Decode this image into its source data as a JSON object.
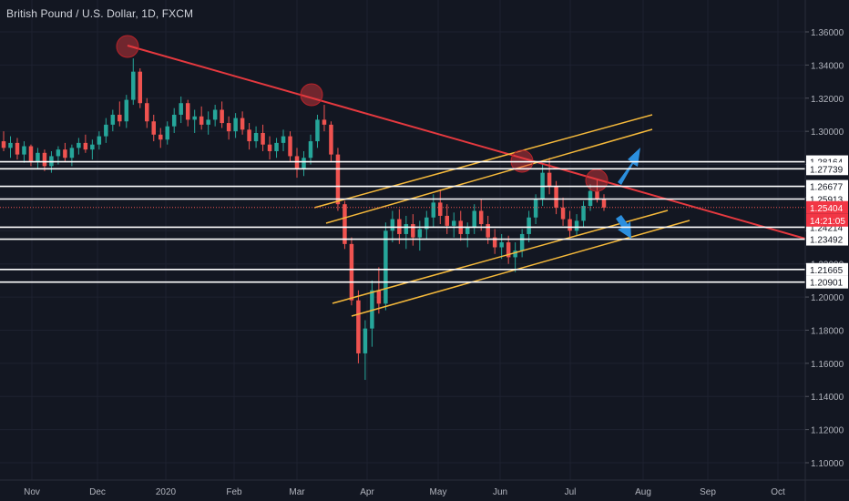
{
  "title": "British Pound / U.S. Dollar, 1D, FXCM",
  "colors": {
    "background": "#131722",
    "grid": "#1e2230",
    "bull": "#26a69a",
    "bear": "#ef5350",
    "trendline": "#e5393f",
    "channel": "#f5b93b",
    "level": "#ffffff",
    "arrow": "#2b8fde",
    "axis_text": "#b2b5be",
    "price_label_bg": "#f23645"
  },
  "chart_data": {
    "type": "candlestick",
    "x_labels": [
      "Nov",
      "Dec",
      "2020",
      "Feb",
      "Mar",
      "Apr",
      "May",
      "Jun",
      "Jul",
      "Aug",
      "Sep",
      "Oct"
    ],
    "y_ticks": [
      "1.36000",
      "1.34000",
      "1.32000",
      "1.30000",
      "1.28000",
      "1.26000",
      "1.24000",
      "1.22000",
      "1.20000",
      "1.18000",
      "1.16000",
      "1.14000",
      "1.12000",
      "1.10000"
    ],
    "y_range": [
      1.094,
      1.375
    ],
    "price_levels": [
      "1.28164",
      "1.27739",
      "1.26677",
      "1.25913",
      "1.24214",
      "1.23492",
      "1.21665",
      "1.20901"
    ],
    "current_price": "1.25404",
    "countdown": "14:21:05",
    "grid": true,
    "ohlc_approx": [
      [
        1.294,
        1.3,
        1.288,
        1.29
      ],
      [
        1.29,
        1.297,
        1.284,
        1.293
      ],
      [
        1.293,
        1.296,
        1.283,
        1.286
      ],
      [
        1.286,
        1.294,
        1.281,
        1.291
      ],
      [
        1.291,
        1.292,
        1.279,
        1.282
      ],
      [
        1.282,
        1.29,
        1.277,
        1.287
      ],
      [
        1.287,
        1.289,
        1.276,
        1.279
      ],
      [
        1.279,
        1.288,
        1.275,
        1.285
      ],
      [
        1.285,
        1.291,
        1.28,
        1.289
      ],
      [
        1.289,
        1.293,
        1.282,
        1.284
      ],
      [
        1.284,
        1.292,
        1.279,
        1.29
      ],
      [
        1.29,
        1.296,
        1.286,
        1.293
      ],
      [
        1.293,
        1.298,
        1.287,
        1.289
      ],
      [
        1.289,
        1.295,
        1.283,
        1.292
      ],
      [
        1.292,
        1.3,
        1.289,
        1.297
      ],
      [
        1.297,
        1.308,
        1.293,
        1.304
      ],
      [
        1.304,
        1.313,
        1.3,
        1.31
      ],
      [
        1.31,
        1.318,
        1.303,
        1.306
      ],
      [
        1.306,
        1.322,
        1.302,
        1.319
      ],
      [
        1.319,
        1.344,
        1.316,
        1.336
      ],
      [
        1.336,
        1.338,
        1.314,
        1.317
      ],
      [
        1.317,
        1.32,
        1.302,
        1.306
      ],
      [
        1.306,
        1.31,
        1.294,
        1.298
      ],
      [
        1.298,
        1.302,
        1.29,
        1.295
      ],
      [
        1.295,
        1.306,
        1.292,
        1.303
      ],
      [
        1.303,
        1.314,
        1.299,
        1.31
      ],
      [
        1.31,
        1.321,
        1.305,
        1.317
      ],
      [
        1.317,
        1.319,
        1.303,
        1.307
      ],
      [
        1.307,
        1.313,
        1.299,
        1.309
      ],
      [
        1.309,
        1.315,
        1.301,
        1.304
      ],
      [
        1.304,
        1.312,
        1.298,
        1.307
      ],
      [
        1.307,
        1.316,
        1.303,
        1.313
      ],
      [
        1.313,
        1.318,
        1.302,
        1.305
      ],
      [
        1.305,
        1.309,
        1.295,
        1.3
      ],
      [
        1.3,
        1.311,
        1.296,
        1.308
      ],
      [
        1.308,
        1.312,
        1.298,
        1.301
      ],
      [
        1.301,
        1.305,
        1.289,
        1.294
      ],
      [
        1.294,
        1.303,
        1.29,
        1.299
      ],
      [
        1.299,
        1.304,
        1.288,
        1.292
      ],
      [
        1.292,
        1.297,
        1.283,
        1.288
      ],
      [
        1.288,
        1.296,
        1.284,
        1.293
      ],
      [
        1.293,
        1.301,
        1.288,
        1.297
      ],
      [
        1.297,
        1.3,
        1.282,
        1.285
      ],
      [
        1.285,
        1.29,
        1.272,
        1.277
      ],
      [
        1.277,
        1.288,
        1.273,
        1.284
      ],
      [
        1.284,
        1.298,
        1.28,
        1.294
      ],
      [
        1.294,
        1.31,
        1.29,
        1.307
      ],
      [
        1.307,
        1.316,
        1.3,
        1.304
      ],
      [
        1.304,
        1.306,
        1.282,
        1.286
      ],
      [
        1.286,
        1.29,
        1.252,
        1.256
      ],
      [
        1.256,
        1.258,
        1.229,
        1.232
      ],
      [
        1.232,
        1.236,
        1.195,
        1.198
      ],
      [
        1.198,
        1.204,
        1.16,
        1.166
      ],
      [
        1.166,
        1.186,
        1.15,
        1.181
      ],
      [
        1.181,
        1.21,
        1.17,
        1.204
      ],
      [
        1.204,
        1.218,
        1.19,
        1.196
      ],
      [
        1.196,
        1.245,
        1.192,
        1.24
      ],
      [
        1.24,
        1.252,
        1.233,
        1.247
      ],
      [
        1.247,
        1.253,
        1.232,
        1.238
      ],
      [
        1.238,
        1.249,
        1.229,
        1.244
      ],
      [
        1.244,
        1.25,
        1.231,
        1.236
      ],
      [
        1.236,
        1.246,
        1.228,
        1.241
      ],
      [
        1.241,
        1.252,
        1.235,
        1.248
      ],
      [
        1.248,
        1.262,
        1.242,
        1.257
      ],
      [
        1.257,
        1.265,
        1.244,
        1.249
      ],
      [
        1.249,
        1.256,
        1.238,
        1.243
      ],
      [
        1.243,
        1.251,
        1.236,
        1.246
      ],
      [
        1.246,
        1.252,
        1.234,
        1.238
      ],
      [
        1.238,
        1.245,
        1.23,
        1.242
      ],
      [
        1.242,
        1.256,
        1.238,
        1.252
      ],
      [
        1.252,
        1.259,
        1.24,
        1.244
      ],
      [
        1.244,
        1.249,
        1.232,
        1.236
      ],
      [
        1.236,
        1.241,
        1.226,
        1.23
      ],
      [
        1.23,
        1.238,
        1.223,
        1.233
      ],
      [
        1.233,
        1.237,
        1.22,
        1.224
      ],
      [
        1.224,
        1.233,
        1.215,
        1.228
      ],
      [
        1.228,
        1.241,
        1.224,
        1.238
      ],
      [
        1.238,
        1.252,
        1.233,
        1.248
      ],
      [
        1.248,
        1.262,
        1.244,
        1.259
      ],
      [
        1.259,
        1.28,
        1.255,
        1.275
      ],
      [
        1.275,
        1.284,
        1.262,
        1.267
      ],
      [
        1.267,
        1.27,
        1.25,
        1.254
      ],
      [
        1.254,
        1.26,
        1.243,
        1.247
      ],
      [
        1.247,
        1.252,
        1.236,
        1.24
      ],
      [
        1.24,
        1.25,
        1.237,
        1.246
      ],
      [
        1.246,
        1.258,
        1.242,
        1.255
      ],
      [
        1.255,
        1.268,
        1.252,
        1.264
      ],
      [
        1.264,
        1.271,
        1.257,
        1.259
      ],
      [
        1.259,
        1.262,
        1.252,
        1.254
      ]
    ]
  }
}
